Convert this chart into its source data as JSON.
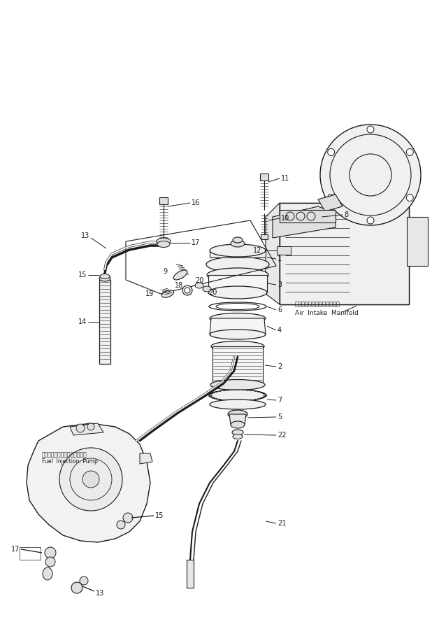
{
  "bg_color": "#ffffff",
  "line_color": "#000000",
  "fig_width": 6.18,
  "fig_height": 9.19,
  "dpi": 100,
  "annotation_jp1": "エアーインテークマニホルド",
  "annotation_en1": "Air  Intake  Manifold",
  "annotation_jp2": "フェルインジェクションポンプ",
  "annotation_en2": "Fuel  Injection  Pump"
}
